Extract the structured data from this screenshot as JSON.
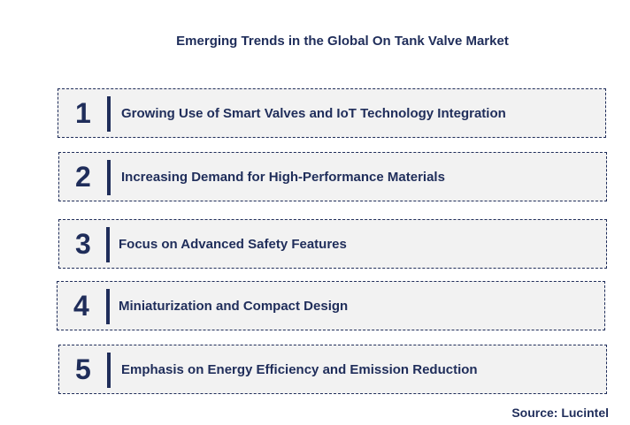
{
  "title": "Emerging Trends in the Global On Tank Valve Market",
  "trends": [
    {
      "number": "1",
      "label": "Growing Use of Smart Valves and IoT Technology Integration"
    },
    {
      "number": "2",
      "label": "Increasing Demand for High-Performance Materials"
    },
    {
      "number": "3",
      "label": "Focus on Advanced Safety Features"
    },
    {
      "number": "4",
      "label": "Miniaturization and Compact Design"
    },
    {
      "number": "5",
      "label": "Emphasis on Energy Efficiency and Emission Reduction"
    }
  ],
  "source": "Source: Lucintel",
  "colors": {
    "accent": "#1f2d5a",
    "box_fill": "#f2f2f2",
    "background": "#ffffff"
  }
}
